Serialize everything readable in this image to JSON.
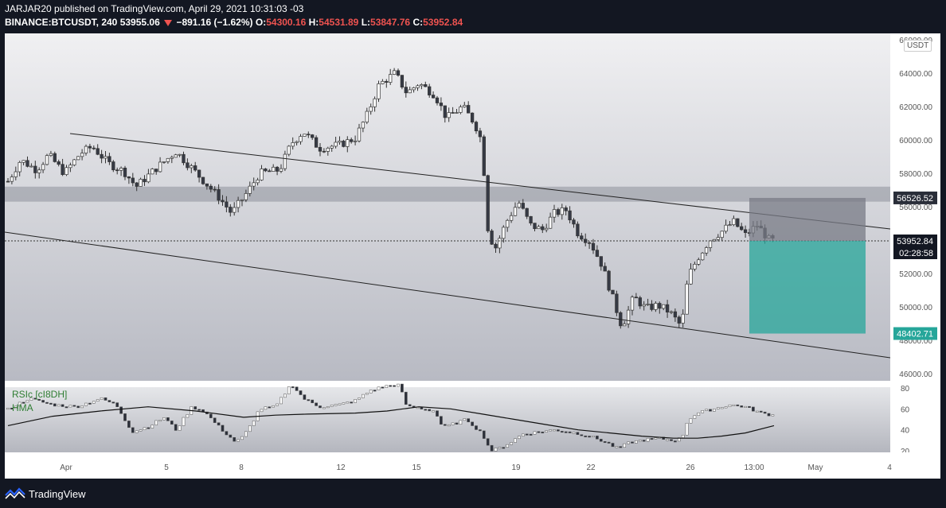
{
  "header": {
    "line1": "JARJAR20 published on TradingView.com, April 29, 2021 10:31:03 -03",
    "symbol": "BINANCE:BTCUSDT, 240",
    "last_price": "53955.06",
    "change": "−891.16 (−1.62%)",
    "open_label": "O:",
    "open_value": "54300.16",
    "high_label": "H:",
    "high_value": "54531.89",
    "low_label": "L:",
    "low_value": "53847.76",
    "close_label": "C:",
    "close_value": "53952.84"
  },
  "price_axis": {
    "currency": "USDT",
    "ticks": [
      "66000.00",
      "64000.00",
      "62000.00",
      "60000.00",
      "58000.00",
      "56000.00",
      "54000.00",
      "52000.00",
      "50000.00",
      "48000.00",
      "46000.00"
    ],
    "tick_values": [
      66000,
      64000,
      62000,
      60000,
      58000,
      56000,
      54000,
      52000,
      50000,
      48000,
      46000
    ],
    "labels": {
      "stop": "56526.52",
      "current": "53952.84",
      "countdown": "02:28:58",
      "target": "48402.71"
    }
  },
  "indicator": {
    "rsi_label": "RSIc [cI8DH]",
    "hma_label": "HMA",
    "ticks": [
      "80",
      "60",
      "40",
      "20"
    ],
    "tick_values": [
      80,
      60,
      40,
      20
    ]
  },
  "time_axis": {
    "labels": [
      "Apr",
      "5",
      "8",
      "12",
      "15",
      "19",
      "22",
      "26",
      "13:00",
      "May",
      "4"
    ]
  },
  "colors": {
    "background": "#131722",
    "up": "#ffffff",
    "down": "#363a45",
    "target_zone": "#26a69a",
    "stop_zone": "#787b86",
    "support_band": "#9598a1",
    "price_label_bg": "#131722",
    "target_label_bg": "#26a69a"
  },
  "footer": {
    "brand": "TradingView"
  }
}
